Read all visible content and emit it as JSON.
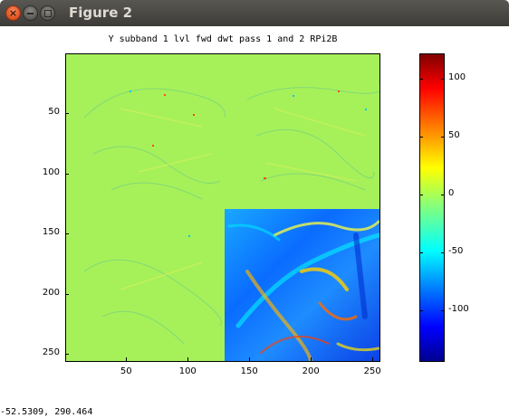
{
  "window": {
    "title": "Figure 2",
    "buttons": {
      "close_icon": "×"
    }
  },
  "plot": {
    "title": "Y subband 1 lvl fwd dwt pass 1 and 2 RPi2B",
    "y_ticks": [
      "50",
      "100",
      "150",
      "200",
      "250"
    ],
    "x_ticks": [
      "50",
      "100",
      "150",
      "200",
      "250"
    ],
    "x_range": [
      1,
      256
    ],
    "y_range": [
      1,
      256
    ],
    "colormap": "jet"
  },
  "colorbar": {
    "ticks": [
      "100",
      "50",
      "0",
      "-50",
      "-100"
    ],
    "range": [
      -145,
      122
    ]
  },
  "status": {
    "coordinates": "-52.5309,  290.464"
  }
}
